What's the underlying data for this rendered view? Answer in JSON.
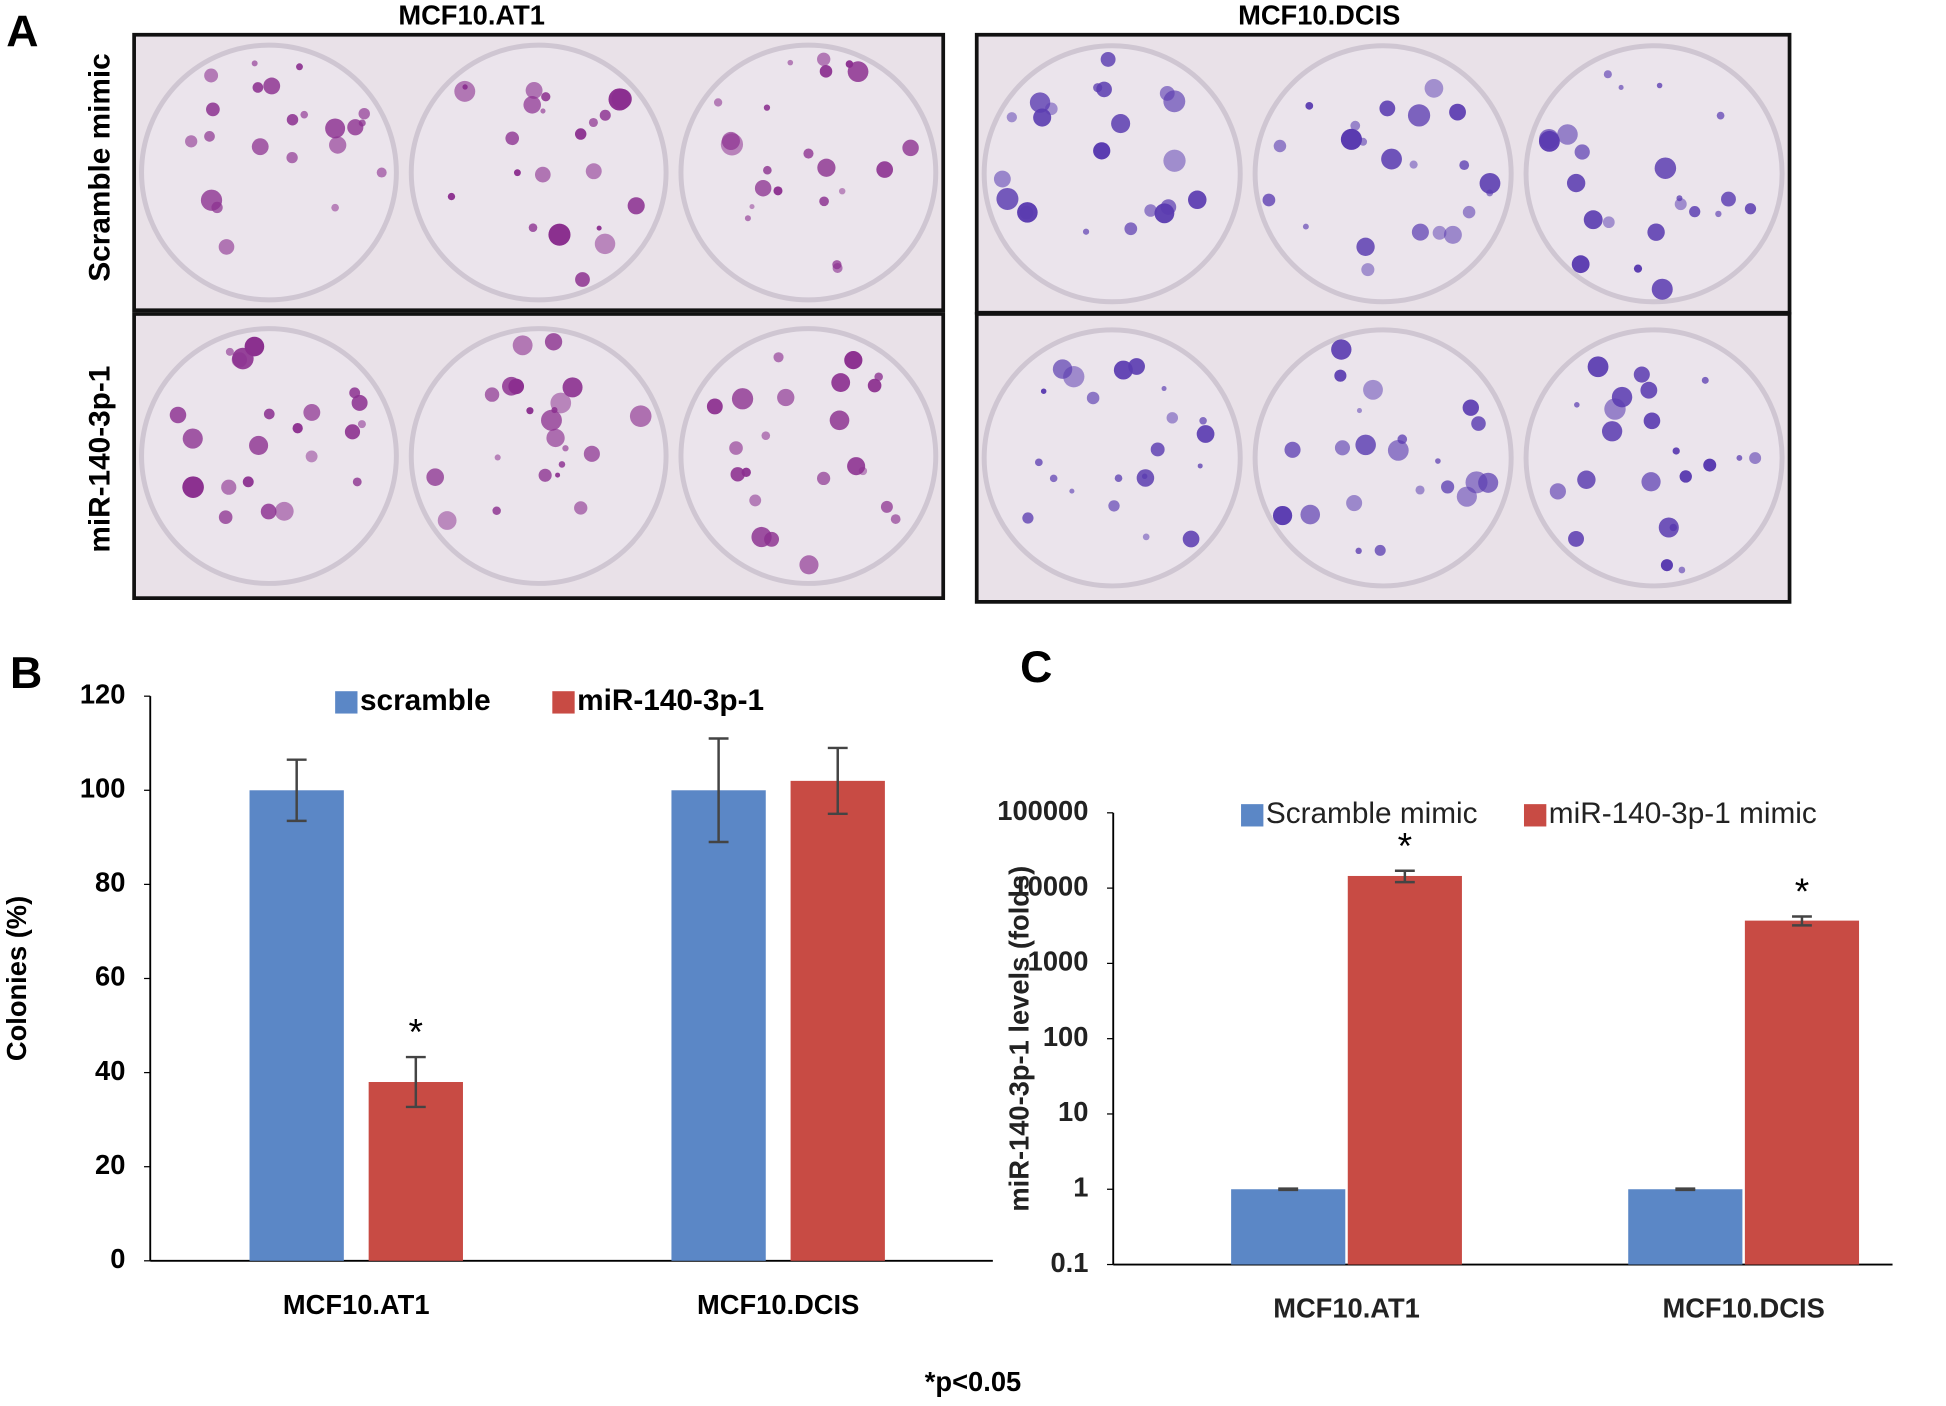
{
  "panel_a": {
    "panel_label": "A",
    "columns": [
      "MCF10.AT1",
      "MCF10.DCIS"
    ],
    "rows": [
      "Scramble mimic",
      "miR-140-3p-1"
    ]
  },
  "footnote": "*p<0.05",
  "chart_data": [
    {
      "type": "bar",
      "panel_label": "B",
      "y_label": "Colonies (%)",
      "categories": [
        "MCF10.AT1",
        "MCF10.DCIS"
      ],
      "series": [
        {
          "name": "scramble",
          "color": "#5b87c6",
          "values": [
            100,
            100
          ],
          "errors": [
            6.5,
            11
          ]
        },
        {
          "name": "miR-140-3p-1",
          "color": "#c84b44",
          "values": [
            38,
            102
          ],
          "errors": [
            5.3,
            7
          ]
        }
      ],
      "annotations": [
        "*"
      ],
      "ylim": [
        0,
        120
      ],
      "yticks": [
        0,
        20,
        40,
        60,
        80,
        100,
        120
      ],
      "log_scale": false,
      "grid": false,
      "legend": "top"
    },
    {
      "type": "bar",
      "panel_label": "C",
      "y_label": "miR-140-3p-1 levels (folds)",
      "categories": [
        "MCF10.AT1",
        "MCF10.DCIS"
      ],
      "series": [
        {
          "name": "Scramble mimic",
          "color": "#5b87c6",
          "values": [
            1,
            1
          ],
          "errors": [
            0.02,
            0.02
          ]
        },
        {
          "name": "miR-140-3p-1 mimic",
          "color": "#c84b44",
          "values": [
            14500,
            3700
          ],
          "errors": [
            2500,
            500
          ]
        }
      ],
      "annotations": [
        "*",
        "*"
      ],
      "ylim": [
        0.1,
        100000
      ],
      "yticks": [
        0.1,
        1,
        10,
        100,
        1000,
        10000,
        100000
      ],
      "log_scale": true,
      "grid": false,
      "legend": "top"
    }
  ]
}
